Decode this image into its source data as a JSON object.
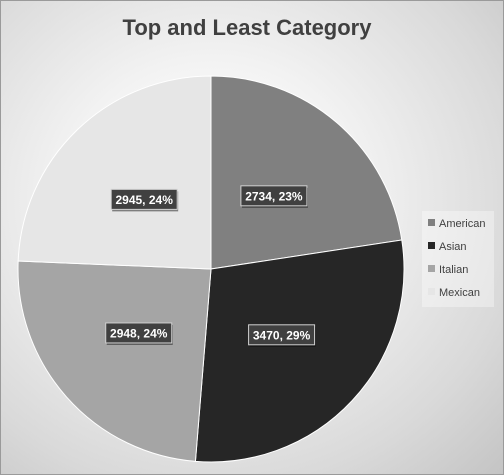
{
  "chart_data": {
    "type": "pie",
    "title": "Top and Least Category",
    "categories": [
      "American",
      "Asian",
      "Italian",
      "Mexican"
    ],
    "values": [
      2734,
      3470,
      2948,
      2945
    ],
    "data_labels": [
      "2734, 23%",
      "3470, 29%",
      "2948, 24%",
      "2945, 24%"
    ],
    "colors": [
      "#808080",
      "#262626",
      "#a5a5a5",
      "#e6e6e6"
    ],
    "legend_position": "right",
    "start_angle_deg": 0,
    "direction": "clockwise"
  }
}
